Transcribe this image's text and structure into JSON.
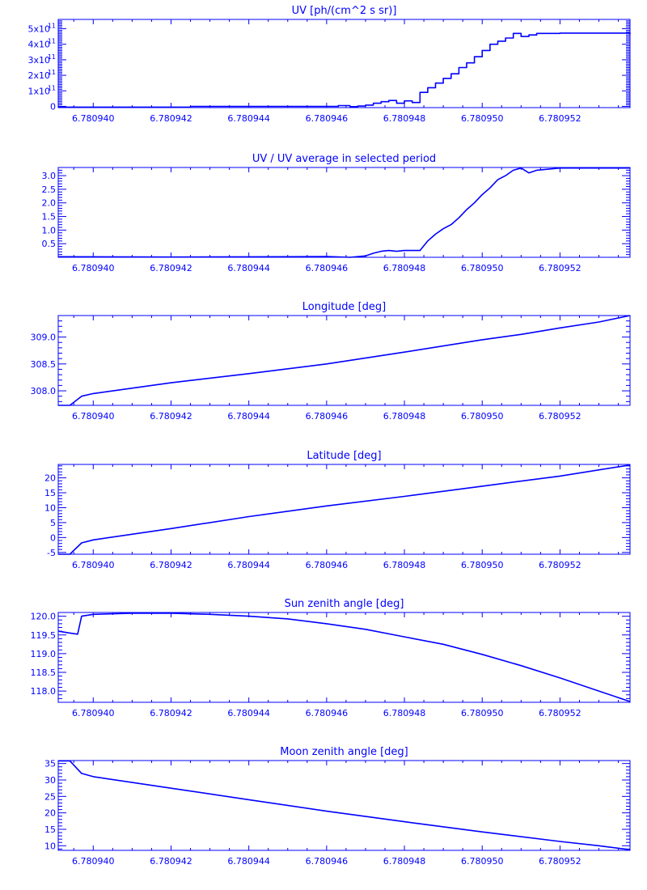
{
  "style": {
    "color": "#0000ff",
    "background": "#ffffff"
  },
  "chart_data": [
    {
      "type": "line",
      "step": true,
      "title": "UV [ph/(cm^2 s sr)]",
      "xlim": [
        6.7809391,
        6.7809538
      ],
      "ylim": [
        -0.08,
        5.6
      ],
      "xticks": [
        6.78094,
        6.780942,
        6.780944,
        6.780946,
        6.780948,
        6.78095,
        6.780952
      ],
      "xtick_labels": [
        "6.780940",
        "6.780942",
        "6.780944",
        "6.780946",
        "6.780948",
        "6.780950",
        "6.780952"
      ],
      "yticks": [
        0,
        1,
        2,
        3,
        4,
        5
      ],
      "ytick_labels": [
        "0",
        "1x10",
        "2x10",
        "3x10",
        "4x10",
        "5x10"
      ],
      "ytick_exponent": "11",
      "y_unit_scale": "1e11",
      "series": [
        {
          "x": [
            6.7809391,
            6.780942,
            6.7809425,
            6.780945,
            6.7809463,
            6.7809466,
            6.7809468,
            6.780947,
            6.7809472,
            6.7809474,
            6.7809476,
            6.7809478,
            6.780948,
            6.7809482,
            6.7809484,
            6.7809486,
            6.7809488,
            6.780949,
            6.7809492,
            6.7809494,
            6.7809496,
            6.7809498,
            6.78095,
            6.7809502,
            6.7809504,
            6.7809506,
            6.7809508,
            6.780951,
            6.7809512,
            6.7809514,
            6.780952,
            6.780953,
            6.7809538
          ],
          "y": [
            -0.05,
            -0.05,
            0.0,
            0.0,
            0.05,
            -0.02,
            0.02,
            0.08,
            0.2,
            0.3,
            0.38,
            0.2,
            0.35,
            0.25,
            0.9,
            1.2,
            1.5,
            1.8,
            2.1,
            2.5,
            2.8,
            3.2,
            3.6,
            4.0,
            4.2,
            4.4,
            4.7,
            4.5,
            4.6,
            4.7,
            4.72,
            4.72,
            4.65
          ]
        }
      ]
    },
    {
      "type": "line",
      "title": "UV / UV average in selected period",
      "xlim": [
        6.7809391,
        6.7809538
      ],
      "ylim": [
        0.0,
        3.3
      ],
      "xticks": [
        6.78094,
        6.780942,
        6.780944,
        6.780946,
        6.780948,
        6.78095,
        6.780952
      ],
      "xtick_labels": [
        "6.780940",
        "6.780942",
        "6.780944",
        "6.780946",
        "6.780948",
        "6.780950",
        "6.780952"
      ],
      "yticks": [
        0.5,
        1.0,
        1.5,
        2.0,
        2.5,
        3.0
      ],
      "ytick_labels": [
        "0.5",
        "1.0",
        "1.5",
        "2.0",
        "2.5",
        "3.0"
      ],
      "series": [
        {
          "x": [
            6.7809391,
            6.780942,
            6.780945,
            6.780946,
            6.7809466,
            6.780947,
            6.7809472,
            6.7809474,
            6.7809476,
            6.7809478,
            6.780948,
            6.7809484,
            6.7809486,
            6.7809488,
            6.780949,
            6.7809492,
            6.7809494,
            6.7809496,
            6.7809498,
            6.78095,
            6.7809502,
            6.7809504,
            6.7809506,
            6.7809508,
            6.780951,
            6.7809512,
            6.7809514,
            6.780952,
            6.780953,
            6.7809538
          ],
          "y": [
            0.02,
            0.01,
            0.02,
            0.03,
            0.0,
            0.05,
            0.15,
            0.22,
            0.25,
            0.22,
            0.25,
            0.25,
            0.6,
            0.85,
            1.05,
            1.2,
            1.45,
            1.75,
            2.0,
            2.3,
            2.55,
            2.85,
            3.0,
            3.2,
            3.28,
            3.1,
            3.2,
            3.28,
            3.28,
            3.28
          ]
        }
      ]
    },
    {
      "type": "line",
      "title": "Longitude [deg]",
      "xlim": [
        6.7809391,
        6.7809538
      ],
      "ylim": [
        307.73,
        309.4
      ],
      "xticks": [
        6.78094,
        6.780942,
        6.780944,
        6.780946,
        6.780948,
        6.78095,
        6.780952
      ],
      "xtick_labels": [
        "6.780940",
        "6.780942",
        "6.780944",
        "6.780946",
        "6.780948",
        "6.780950",
        "6.780952"
      ],
      "yticks": [
        308.0,
        308.5,
        309.0
      ],
      "ytick_labels": [
        "308.0",
        "308.5",
        "309.0"
      ],
      "series": [
        {
          "x": [
            6.7809391,
            6.7809394,
            6.7809397,
            6.78094,
            6.780942,
            6.780944,
            6.780946,
            6.780948,
            6.78095,
            6.780951,
            6.780952,
            6.780953,
            6.7809538
          ],
          "y": [
            307.73,
            307.73,
            307.9,
            307.95,
            308.15,
            308.32,
            308.5,
            308.72,
            308.95,
            309.05,
            309.17,
            309.28,
            309.4
          ]
        }
      ]
    },
    {
      "type": "line",
      "title": "Latitude [deg]",
      "xlim": [
        6.7809391,
        6.7809538
      ],
      "ylim": [
        -5.6,
        24.5
      ],
      "xticks": [
        6.78094,
        6.780942,
        6.780944,
        6.780946,
        6.780948,
        6.78095,
        6.780952
      ],
      "xtick_labels": [
        "6.780940",
        "6.780942",
        "6.780944",
        "6.780946",
        "6.780948",
        "6.780950",
        "6.780952"
      ],
      "yticks": [
        -5,
        0,
        5,
        10,
        15,
        20
      ],
      "ytick_labels": [
        "-5",
        "0",
        "5",
        "10",
        "15",
        "20"
      ],
      "series": [
        {
          "x": [
            6.7809391,
            6.7809394,
            6.7809397,
            6.78094,
            6.780942,
            6.780944,
            6.780946,
            6.780948,
            6.78095,
            6.780952,
            6.7809538
          ],
          "y": [
            -5.6,
            -5.6,
            -1.8,
            -0.8,
            3.0,
            7.0,
            10.6,
            13.8,
            17.2,
            20.6,
            24.3
          ]
        }
      ]
    },
    {
      "type": "line",
      "title": "Sun zenith angle [deg]",
      "xlim": [
        6.7809391,
        6.7809538
      ],
      "ylim": [
        117.7,
        120.1
      ],
      "xticks": [
        6.78094,
        6.780942,
        6.780944,
        6.780946,
        6.780948,
        6.78095,
        6.780952
      ],
      "xtick_labels": [
        "6.780940",
        "6.780942",
        "6.780944",
        "6.780946",
        "6.780948",
        "6.780950",
        "6.780952"
      ],
      "yticks": [
        118.0,
        118.5,
        119.0,
        119.5,
        120.0
      ],
      "ytick_labels": [
        "118.0",
        "118.5",
        "119.0",
        "119.5",
        "120.0"
      ],
      "series": [
        {
          "x": [
            6.7809391,
            6.7809394,
            6.7809396,
            6.7809397,
            6.78094,
            6.780941,
            6.780942,
            6.780943,
            6.780944,
            6.780945,
            6.780946,
            6.780947,
            6.780948,
            6.780949,
            6.78095,
            6.780951,
            6.780952,
            6.780953,
            6.7809538
          ],
          "y": [
            119.6,
            119.55,
            119.52,
            120.0,
            120.05,
            120.08,
            120.08,
            120.05,
            120.0,
            119.93,
            119.8,
            119.65,
            119.45,
            119.25,
            118.98,
            118.68,
            118.35,
            118.0,
            117.72
          ]
        }
      ]
    },
    {
      "type": "line",
      "title": "Moon zenith angle [deg]",
      "xlim": [
        6.7809391,
        6.7809538
      ],
      "ylim": [
        8.6,
        35.9
      ],
      "xticks": [
        6.78094,
        6.780942,
        6.780944,
        6.780946,
        6.780948,
        6.78095,
        6.780952
      ],
      "xtick_labels": [
        "6.780940",
        "6.780942",
        "6.780944",
        "6.780946",
        "6.780948",
        "6.780950",
        "6.780952"
      ],
      "yticks": [
        10,
        15,
        20,
        25,
        30,
        35
      ],
      "ytick_labels": [
        "10",
        "15",
        "20",
        "25",
        "30",
        "35"
      ],
      "series": [
        {
          "x": [
            6.7809391,
            6.7809394,
            6.7809397,
            6.78094,
            6.780942,
            6.780944,
            6.780946,
            6.780948,
            6.78095,
            6.780952,
            6.780953,
            6.7809538
          ],
          "y": [
            35.8,
            35.8,
            32.0,
            31.0,
            27.5,
            24.0,
            20.5,
            17.3,
            14.2,
            11.3,
            10.0,
            8.8
          ]
        }
      ]
    }
  ]
}
